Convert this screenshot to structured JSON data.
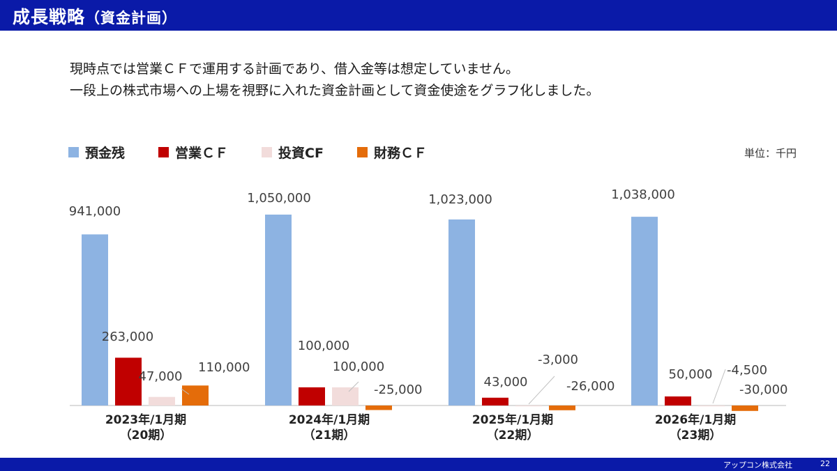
{
  "header": {
    "title": "成長戦略",
    "subtitle": "（資金計画）"
  },
  "intro": {
    "line1": "現時点では営業ＣＦで運用する計画であり、借入金等は想定していません。",
    "line2": "一段上の株式市場への上場を視野に入れた資金計画として資金使途をグラフ化しました。"
  },
  "unit_label": "単位：千円",
  "chart_data": {
    "type": "bar",
    "categories": [
      [
        "2023年/1月期",
        "（20期）"
      ],
      [
        "2024年/1月期",
        "（21期）"
      ],
      [
        "2025年/1月期",
        "（22期）"
      ],
      [
        "2026年/1月期",
        "（23期）"
      ]
    ],
    "series": [
      {
        "name": "預金残",
        "color": "#8db3e2",
        "values": [
          941000,
          1050000,
          1023000,
          1038000
        ]
      },
      {
        "name": "営業ＣＦ",
        "color": "#c00000",
        "values": [
          263000,
          100000,
          43000,
          50000
        ]
      },
      {
        "name": "投資CF",
        "color": "#f2dcdb",
        "values": [
          47000,
          100000,
          -3000,
          -4500
        ]
      },
      {
        "name": "財務ＣＦ",
        "color": "#e46c0a",
        "values": [
          110000,
          -25000,
          -26000,
          -30000
        ]
      }
    ],
    "data_labels": [
      [
        "941,000",
        "263,000",
        "47,000",
        "110,000"
      ],
      [
        "1,050,000",
        "100,000",
        "100,000",
        "-25,000"
      ],
      [
        "1,023,000",
        "43,000",
        "-3,000",
        "-26,000"
      ],
      [
        "1,038,000",
        "50,000",
        "-4,500",
        "-30,000"
      ]
    ],
    "ylim": [
      -40000,
      1100000
    ],
    "legend_position": "top-left",
    "grid": false
  },
  "footer": {
    "company": "アップコン株式会社",
    "page": "22"
  }
}
